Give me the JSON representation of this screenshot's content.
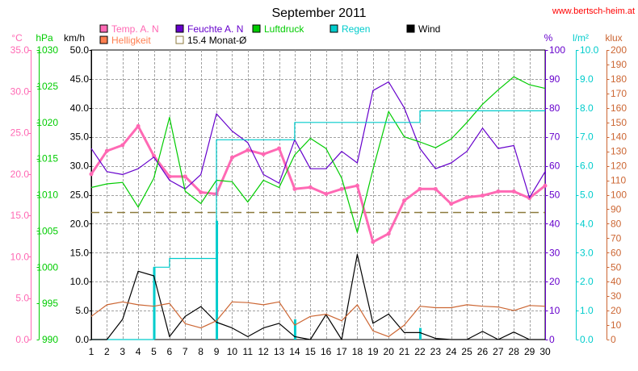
{
  "website": "www.bertsch-heim.at",
  "chart_data": {
    "type": "line",
    "title": "September 2011",
    "x": [
      1,
      2,
      3,
      4,
      5,
      6,
      7,
      8,
      9,
      10,
      11,
      12,
      13,
      14,
      15,
      16,
      17,
      18,
      19,
      20,
      21,
      22,
      23,
      24,
      25,
      26,
      27,
      28,
      29,
      30
    ],
    "axes": [
      {
        "id": "temp",
        "unit": "°C",
        "side": "left",
        "range": [
          0,
          35
        ],
        "ticks": [
          "0.0",
          "5.0",
          "10.0",
          "15.0",
          "20.0",
          "25.0",
          "30.0",
          "35.0"
        ],
        "color": "#ff69b4"
      },
      {
        "id": "press",
        "unit": "hPa",
        "side": "left",
        "range": [
          990,
          1030
        ],
        "ticks": [
          "990",
          "995",
          "1000",
          "1005",
          "1010",
          "1015",
          "1020",
          "1025",
          "1030"
        ],
        "color": "#00cc00"
      },
      {
        "id": "wind",
        "unit": "km/h",
        "side": "left",
        "range": [
          0,
          50
        ],
        "ticks": [
          "0.0",
          "5.0",
          "10.0",
          "15.0",
          "20.0",
          "25.0",
          "30.0",
          "35.0",
          "40.0",
          "45.0",
          "50.0"
        ],
        "color": "#000000"
      },
      {
        "id": "hum",
        "unit": "%",
        "side": "right",
        "range": [
          0,
          100
        ],
        "ticks": [
          "0",
          "10",
          "20",
          "30",
          "40",
          "50",
          "60",
          "70",
          "80",
          "90",
          "100"
        ],
        "color": "#6600cc"
      },
      {
        "id": "rain",
        "unit": "l/m²",
        "side": "right",
        "range": [
          0,
          10
        ],
        "ticks": [
          "0.0",
          "1.0",
          "2.0",
          "3.0",
          "4.0",
          "5.0",
          "6.0",
          "7.0",
          "8.0",
          "9.0",
          "10.0"
        ],
        "color": "#00cccc"
      },
      {
        "id": "lux",
        "unit": "klux",
        "side": "right",
        "range": [
          0,
          200
        ],
        "ticks": [
          "0",
          "10",
          "20",
          "30",
          "40",
          "50",
          "60",
          "70",
          "80",
          "90",
          "100",
          "110",
          "120",
          "130",
          "140",
          "150",
          "160",
          "170",
          "180",
          "190",
          "200"
        ],
        "color": "#cc6633"
      }
    ],
    "series": [
      {
        "name": "Temp. A. N",
        "axis": "temp",
        "color": "#ff69b4",
        "values": [
          20.0,
          22.8,
          23.5,
          25.8,
          22.2,
          19.7,
          19.7,
          17.8,
          17.6,
          22.0,
          22.9,
          22.4,
          23.1,
          18.2,
          18.4,
          17.6,
          18.2,
          18.6,
          11.8,
          12.8,
          16.8,
          18.2,
          18.2,
          16.4,
          17.2,
          17.4,
          17.9,
          17.9,
          17.1,
          18.6
        ],
        "marker": true
      },
      {
        "name": "Feuchte A. N",
        "axis": "hum",
        "color": "#6600cc",
        "values": [
          66,
          58,
          57,
          59,
          63,
          55,
          52,
          57,
          78,
          72,
          68,
          57,
          54,
          69,
          59,
          59,
          65,
          61,
          86,
          89,
          80,
          66,
          59,
          61,
          65,
          73,
          66,
          67,
          49,
          58
        ]
      },
      {
        "name": "Luftdruck",
        "axis": "press",
        "color": "#00cc00",
        "values": [
          1011.0,
          1011.5,
          1011.7,
          1008.3,
          1012.3,
          1020.7,
          1010.5,
          1008.8,
          1012.0,
          1011.8,
          1009.0,
          1012.0,
          1011.0,
          1015.5,
          1017.8,
          1016.4,
          1012.3,
          1004.8,
          1013.5,
          1021.5,
          1018.0,
          1017.3,
          1016.5,
          1017.7,
          1020.0,
          1022.5,
          1024.5,
          1026.3,
          1025.2,
          1024.7
        ]
      },
      {
        "name": "Regen",
        "axis": "rain",
        "color": "#00cccc",
        "step": true,
        "values": [
          0,
          0,
          0,
          0,
          2.5,
          2.8,
          2.8,
          2.8,
          6.9,
          6.9,
          6.9,
          6.9,
          6.9,
          7.5,
          7.5,
          7.5,
          7.5,
          7.5,
          7.5,
          7.5,
          7.5,
          7.9,
          7.9,
          7.9,
          7.9,
          7.9,
          7.9,
          7.9,
          7.9,
          7.9
        ]
      },
      {
        "name": "Wind",
        "axis": "wind",
        "color": "#000000",
        "values": [
          0,
          0,
          3.5,
          11.8,
          11.0,
          0.5,
          4.0,
          5.7,
          3.0,
          2.0,
          0.5,
          2.0,
          2.8,
          0.5,
          0,
          4.3,
          0,
          14.7,
          2.8,
          4.4,
          1.2,
          1.2,
          0.2,
          0,
          0,
          1.4,
          0,
          1.3,
          0,
          0
        ]
      },
      {
        "name": "Helligkeit",
        "axis": "lux",
        "color": "#cc6633",
        "values": [
          16,
          24,
          26,
          24,
          23,
          25,
          11,
          8,
          13,
          26,
          25.5,
          24,
          26,
          10,
          16,
          17.5,
          13,
          24,
          6,
          2,
          10,
          23,
          22,
          22,
          24,
          23,
          22.5,
          20,
          23.5,
          23
        ]
      }
    ],
    "rain_bars": [
      {
        "x": 5,
        "value": 2.5
      },
      {
        "x": 9,
        "value": 4.1
      },
      {
        "x": 14,
        "value": 0.7
      },
      {
        "x": 22,
        "value": 0.4
      }
    ],
    "reference_line": {
      "name": "15.4 Monat-Ø",
      "axis": "temp",
      "value": 15.4,
      "color": "#8c7a3c"
    },
    "legend": [
      {
        "label": "Temp. A. N",
        "color": "#ff69b4"
      },
      {
        "label": "Feuchte A. N",
        "color": "#6600cc"
      },
      {
        "label": "Luftdruck",
        "color": "#00cc00"
      },
      {
        "label": "Regen",
        "color": "#00cccc"
      },
      {
        "label": "Wind",
        "color": "#000000"
      },
      {
        "label": "Helligkeit",
        "color": "#ff7f50"
      },
      {
        "label": "15.4 Monat-Ø",
        "color": "#ffffff"
      }
    ],
    "grid": true
  }
}
